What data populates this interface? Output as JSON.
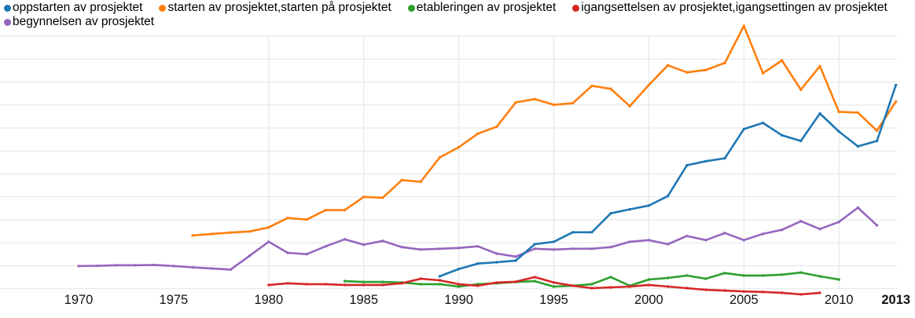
{
  "chart": {
    "kind": "ngram-style line chart",
    "legend": {
      "rows": [
        [
          {
            "label": "oppstarten av prosjektet",
            "color": "#1f77b4"
          },
          {
            "label": "starten av prosjektet,starten på prosjektet",
            "color": "#ff7f0e"
          },
          {
            "label": "etableringen av prosjektet",
            "color": "#2ca02c"
          },
          {
            "label": "igangsettelsen av prosjektet,igangsettingen av prosjektet",
            "color": "#d62728"
          }
        ],
        [
          {
            "label": "begynnelsen av prosjektet",
            "color": "#9467bd"
          }
        ]
      ]
    }
  },
  "chart_data": {
    "type": "line",
    "title": "",
    "xlabel": "",
    "ylabel": "",
    "units": "relative frequency, unlabeled y-axis (values normalized 0-100 of chart max)",
    "xlim": [
      1966,
      2013
    ],
    "ylim": [
      0,
      100
    ],
    "grid": "horizontal every ~8.5 units, vertical at 5-year ticks 1980-2010",
    "legend_position": "top-left, two rows",
    "x_ticks": [
      {
        "label": "1970",
        "year": 1970,
        "bold": false
      },
      {
        "label": "1975",
        "year": 1975,
        "bold": false
      },
      {
        "label": "1980",
        "year": 1980,
        "bold": false
      },
      {
        "label": "1985",
        "year": 1985,
        "bold": false
      },
      {
        "label": "1990",
        "year": 1990,
        "bold": false
      },
      {
        "label": "1995",
        "year": 1995,
        "bold": false
      },
      {
        "label": "2000",
        "year": 2000,
        "bold": false
      },
      {
        "label": "2005",
        "year": 2005,
        "bold": false
      },
      {
        "label": "2010",
        "year": 2010,
        "bold": false
      },
      {
        "label": "2013",
        "year": 2013,
        "bold": true
      }
    ],
    "series": [
      {
        "name": "starten av prosjektet,starten på prosjektet",
        "color": "#ff7f0e",
        "start_year": 1976,
        "values": [
          22.4,
          23.0,
          23.5,
          23.9,
          25.4,
          28.9,
          28.3,
          31.8,
          31.8,
          36.7,
          36.4,
          42.9,
          42.3,
          51.3,
          55.1,
          60.1,
          62.7,
          71.7,
          72.9,
          70.8,
          71.4,
          77.8,
          76.7,
          70.3,
          78.1,
          85.4,
          82.8,
          83.7,
          86.3,
          100.0,
          82.5,
          87.2,
          76.4,
          85.1,
          68.2,
          67.9,
          61.2,
          72.0
        ]
      },
      {
        "name": "etableringen av prosjektet",
        "color": "#2ca02c",
        "start_year": 1984,
        "values": [
          5.5,
          5.2,
          5.2,
          5.0,
          4.4,
          4.4,
          3.5,
          4.4,
          4.7,
          5.2,
          5.5,
          3.5,
          3.8,
          4.4,
          7.0,
          3.8,
          6.1,
          6.7,
          7.6,
          6.4,
          8.5,
          7.6,
          7.6,
          7.9,
          8.7,
          7.3,
          6.1
        ]
      },
      {
        "name": "igangsettelsen av prosjektet,igangsettingen av prosjektet",
        "color": "#d62728",
        "start_year": 1980,
        "values": [
          4.1,
          4.7,
          4.4,
          4.4,
          4.1,
          4.1,
          4.1,
          4.7,
          6.4,
          5.8,
          4.4,
          3.8,
          5.0,
          5.3,
          7.0,
          5.0,
          3.8,
          2.9,
          3.2,
          3.5,
          4.1,
          3.5,
          2.9,
          2.3,
          2.0,
          1.7,
          1.5,
          1.2,
          0.6,
          1.2
        ]
      },
      {
        "name": "begynnelsen av prosjektet",
        "color": "#9467bd",
        "start_year": 1970,
        "values": [
          11.1,
          11.2,
          11.4,
          11.4,
          11.5,
          11.1,
          10.6,
          10.2,
          9.8,
          14.9,
          20.1,
          16.0,
          15.5,
          18.4,
          21.0,
          19.0,
          20.4,
          18.1,
          17.2,
          17.5,
          17.8,
          18.4,
          15.7,
          14.6,
          17.5,
          17.2,
          17.5,
          17.5,
          18.1,
          20.1,
          20.7,
          19.2,
          22.2,
          20.7,
          23.3,
          20.7,
          23.0,
          24.5,
          27.7,
          24.8,
          27.4,
          32.7,
          26.2
        ]
      },
      {
        "name": "oppstarten av prosjektet",
        "color": "#1f77b4",
        "start_year": 1989,
        "values": [
          7.3,
          10.0,
          12.0,
          12.5,
          13.1,
          19.2,
          20.1,
          23.6,
          23.6,
          30.6,
          32.1,
          33.5,
          37.0,
          48.4,
          49.9,
          51.0,
          61.8,
          64.1,
          59.5,
          57.4,
          67.6,
          60.9,
          55.4,
          57.4,
          78.1
        ]
      }
    ]
  }
}
